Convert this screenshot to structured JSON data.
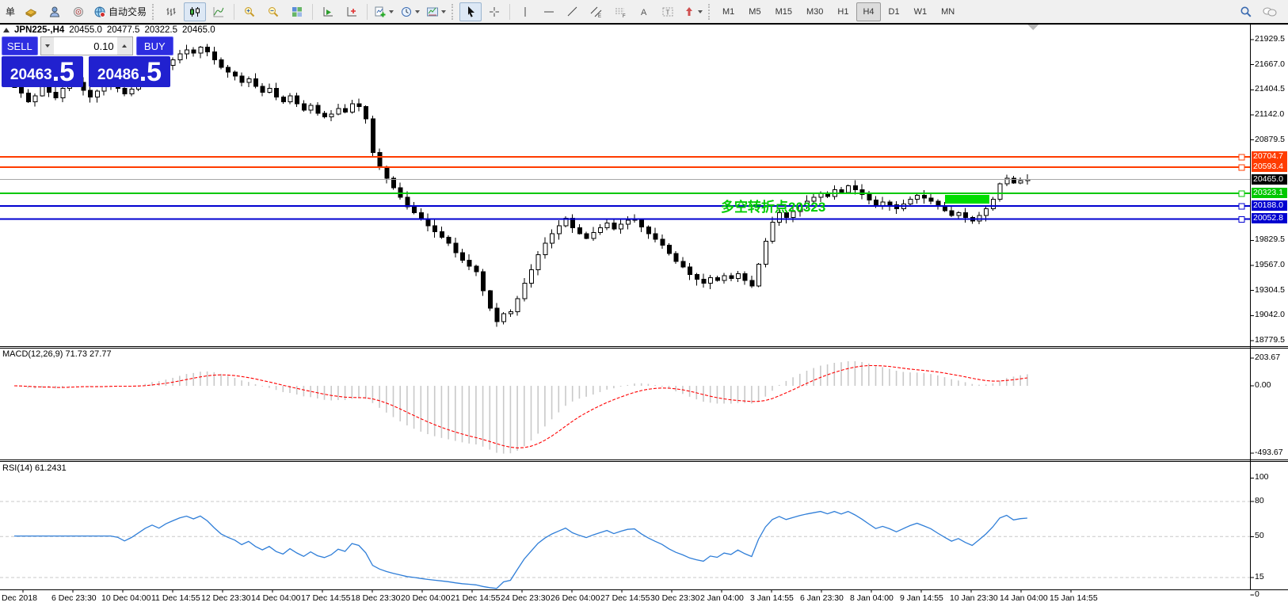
{
  "toolbar": {
    "new_order_label": "单",
    "autotrading_label": "自动交易",
    "timeframes": [
      "M1",
      "M5",
      "M15",
      "M30",
      "H1",
      "H4",
      "D1",
      "W1",
      "MN"
    ],
    "active_timeframe": "H4"
  },
  "chart_header": {
    "symbol_period": "JPN225-,H4",
    "open": "20455.0",
    "high": "20477.5",
    "low": "20322.5",
    "close": "20465.0"
  },
  "trade_panel": {
    "sell_label": "SELL",
    "buy_label": "BUY",
    "volume": "0.10",
    "sell_price": "20463",
    "sell_pip": ".5",
    "buy_price": "20486",
    "buy_pip": ".5",
    "panel_color": "#2121cf"
  },
  "indicators": {
    "macd_label": "MACD(12,26,9) 71.73 27.77",
    "rsi_label": "RSI(14) 61.2431"
  },
  "annotation": {
    "text": "多空转折点20323",
    "color": "#00cc00"
  },
  "chart_data": {
    "type": "candlestick",
    "symbol": "JPN225-",
    "timeframe": "H4",
    "ohlc_current": {
      "open": 20455.0,
      "high": 20477.5,
      "low": 20322.5,
      "close": 20465.0
    },
    "ylim": [
      18779.5,
      21929.5
    ],
    "price_ticks": [
      21929.5,
      21667.0,
      21404.5,
      21142.0,
      20879.5,
      19829.5,
      19567.0,
      19304.5,
      19042.0,
      18779.5
    ],
    "levels": [
      {
        "price": 20704.7,
        "label": "20704.7",
        "color": "#ff3c00",
        "width": 2,
        "handle": true
      },
      {
        "price": 20593.4,
        "label": "20593.4",
        "color": "#ff3c00",
        "width": 2,
        "handle": true
      },
      {
        "price": 20465.0,
        "label": "20465.0",
        "color": "#a8a8a8",
        "label_bg": "#000000",
        "width": 1,
        "handle": false,
        "current": true
      },
      {
        "price": 20323.1,
        "label": "20323.1",
        "color": "#00c800",
        "width": 2,
        "handle": true
      },
      {
        "price": 20188.0,
        "label": "20188.0",
        "color": "#0000d0",
        "width": 2,
        "handle": true
      },
      {
        "price": 20052.8,
        "label": "20052.8",
        "color": "#0000d0",
        "width": 2,
        "handle": true
      }
    ],
    "highlight_box": {
      "price": 20323.1,
      "x": 1193,
      "width": 56,
      "height": 11,
      "color": "#00dd00"
    },
    "closes": [
      21430,
      21370,
      21280,
      21340,
      21450,
      21380,
      21320,
      21420,
      21510,
      21480,
      21400,
      21330,
      21390,
      21470,
      21440,
      21420,
      21360,
      21410,
      21480,
      21560,
      21620,
      21580,
      21660,
      21720,
      21780,
      21820,
      21790,
      21850,
      21800,
      21720,
      21640,
      21590,
      21550,
      21480,
      21520,
      21440,
      21380,
      21420,
      21330,
      21280,
      21340,
      21260,
      21190,
      21240,
      21160,
      21120,
      21150,
      21210,
      21170,
      21260,
      21230,
      21100,
      20750,
      20600,
      20480,
      20380,
      20280,
      20180,
      20120,
      20050,
      19980,
      19920,
      19860,
      19800,
      19700,
      19620,
      19560,
      19500,
      19300,
      19120,
      18980,
      19060,
      19080,
      19220,
      19380,
      19520,
      19680,
      19800,
      19900,
      19980,
      20060,
      19960,
      19900,
      19850,
      19910,
      19960,
      20010,
      19950,
      20000,
      20040,
      20050,
      19970,
      19900,
      19840,
      19780,
      19690,
      19610,
      19550,
      19470,
      19420,
      19380,
      19440,
      19410,
      19460,
      19430,
      19480,
      19410,
      19350,
      19580,
      19820,
      20020,
      20120,
      20070,
      20130,
      20190,
      20240,
      20280,
      20320,
      20290,
      20360,
      20330,
      20400,
      20360,
      20310,
      20250,
      20190,
      20230,
      20200,
      20160,
      20210,
      20260,
      20300,
      20270,
      20240,
      20190,
      20140,
      20090,
      20120,
      20070,
      20030,
      20090,
      20160,
      20260,
      20420,
      20480,
      20430,
      20455,
      20465
    ],
    "macd": {
      "params": [
        12,
        26,
        9
      ],
      "last_main": 71.73,
      "last_signal": 27.77,
      "axis": [
        "203.67",
        "0.00",
        "-493.67"
      ],
      "hist_color": "#c9c9c9",
      "signal_color": "#ff0000"
    },
    "rsi": {
      "period": 14,
      "last": 61.2431,
      "axis": [
        "100",
        "80",
        "50",
        "15",
        "0"
      ],
      "level_lines": [
        80,
        50,
        15
      ],
      "line_color": "#2f7ed8"
    }
  },
  "time_axis": {
    "labels": [
      "Dec 2018",
      "6 Dec 23:30",
      "10 Dec 04:00",
      "11 Dec 14:55",
      "12 Dec 23:30",
      "14 Dec 04:00",
      "17 Dec 14:55",
      "18 Dec 23:30",
      "20 Dec 04:00",
      "21 Dec 14:55",
      "24 Dec 23:30",
      "26 Dec 04:00",
      "27 Dec 14:55",
      "30 Dec 23:30",
      "2 Jan 04:00",
      "3 Jan 14:55",
      "6 Jan 23:30",
      "8 Jan 04:00",
      "9 Jan 14:55",
      "10 Jan 23:30",
      "14 Jan 04:00",
      "15 Jan 14:55"
    ]
  }
}
